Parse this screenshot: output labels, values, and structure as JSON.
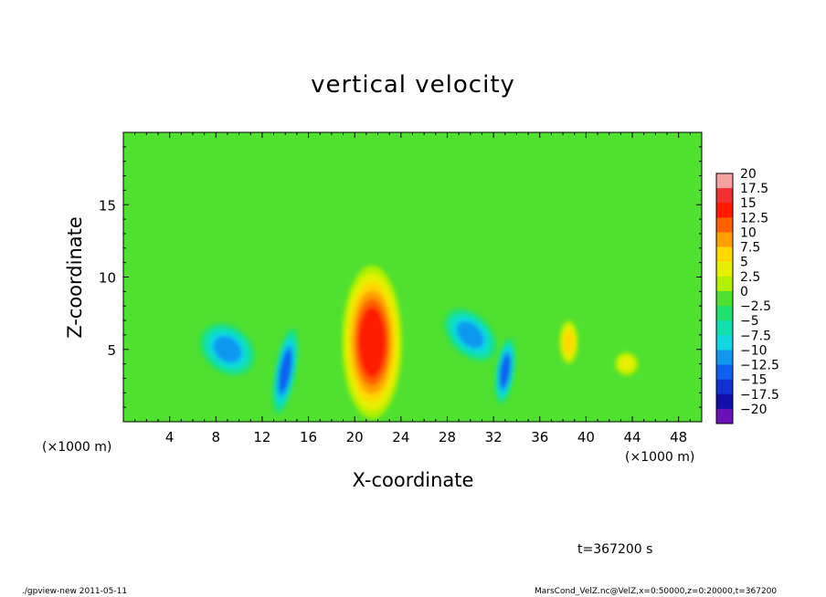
{
  "chart_data": {
    "type": "heatmap",
    "title": "vertical velocity",
    "xlabel": "X-coordinate",
    "ylabel": "Z-coordinate",
    "x_unit": "(×1000 m)",
    "xlim": [
      0,
      50
    ],
    "ylim": [
      0,
      20
    ],
    "xticks": [
      "4",
      "8",
      "12",
      "16",
      "20",
      "24",
      "28",
      "32",
      "36",
      "40",
      "44",
      "48"
    ],
    "xtick_values": [
      4,
      8,
      12,
      16,
      20,
      24,
      28,
      32,
      36,
      40,
      44,
      48
    ],
    "yticks": [
      "5",
      "10",
      "15"
    ],
    "ytick_values": [
      5,
      10,
      15
    ],
    "colorbar": {
      "labels": [
        "20",
        "17.5",
        "15",
        "12.5",
        "10",
        "7.5",
        "5",
        "2.5",
        "0",
        "−2.5",
        "−5",
        "−7.5",
        "−10",
        "−12.5",
        "−15",
        "−17.5",
        "−20"
      ],
      "colors": [
        "#f7a0a0",
        "#ee3030",
        "#ff1a00",
        "#ff6000",
        "#ffa000",
        "#ffd800",
        "#e6f000",
        "#b0f000",
        "#50e030",
        "#20e070",
        "#10e0b0",
        "#10d8e0",
        "#1098f0",
        "#1060f0",
        "#1030d0",
        "#1010a8",
        "#6a10b8"
      ]
    },
    "background_value": 0,
    "features": [
      {
        "kind": "updraft",
        "x": 21.5,
        "z": 5.5,
        "peak": 15
      },
      {
        "kind": "downdraft",
        "x": 9,
        "z": 5,
        "peak": -10
      },
      {
        "kind": "downdraft",
        "x": 14,
        "z": 3.5,
        "peak": -12.5
      },
      {
        "kind": "downdraft",
        "x": 30,
        "z": 6,
        "peak": -10
      },
      {
        "kind": "downdraft",
        "x": 33,
        "z": 3.5,
        "peak": -12.5
      },
      {
        "kind": "updraft",
        "x": 38.5,
        "z": 5.5,
        "peak": 7.5
      },
      {
        "kind": "updraft",
        "x": 43.5,
        "z": 4,
        "peak": 5
      }
    ]
  },
  "time_label": "t=367200 s",
  "footer": {
    "left": "./gpview-new   2011-05-11",
    "right": "MarsCond_VelZ.nc@VelZ,x=0:50000,z=0:20000,t=367200"
  }
}
